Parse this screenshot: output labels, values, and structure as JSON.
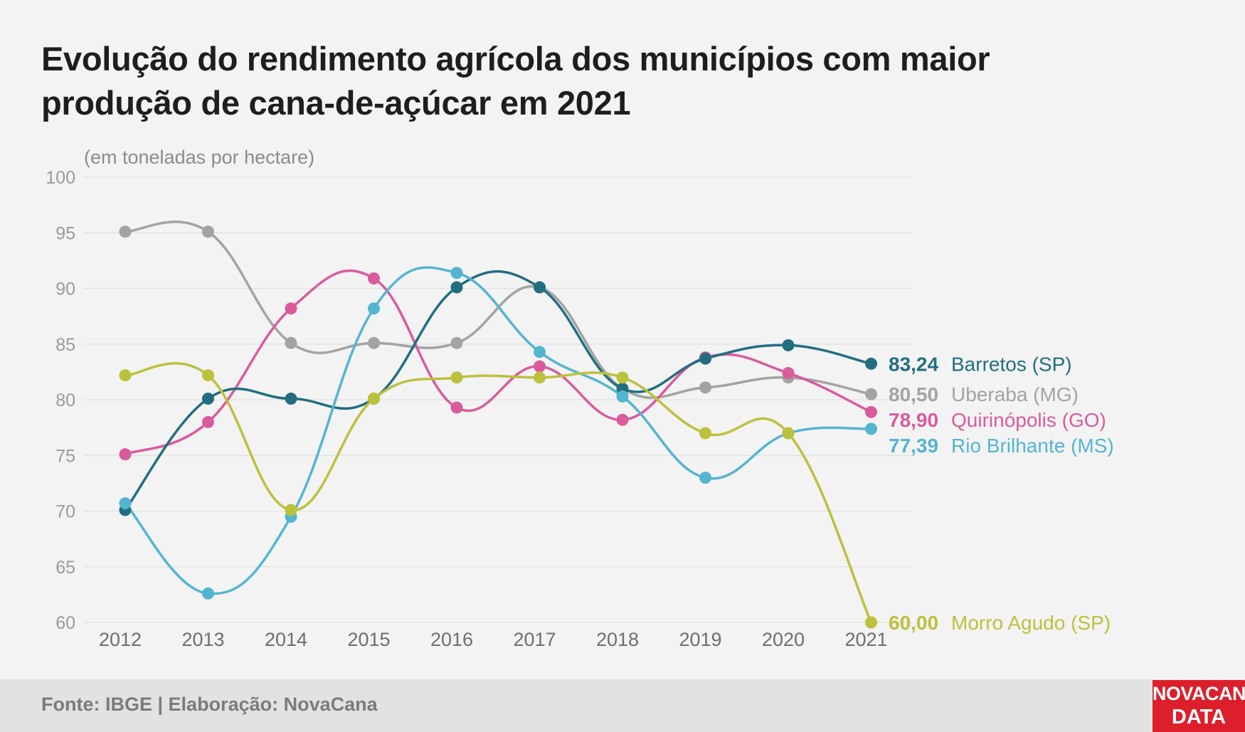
{
  "title": "Evolução do rendimento agrícola dos municípios com maior produção de cana-de-açúcar em 2021",
  "footer": {
    "source": "Fonte: IBGE | Elaboração: NovaCana"
  },
  "logo": {
    "line1": "NOVACANA",
    "line2": "DATA"
  },
  "chart_data": {
    "type": "line",
    "unit_label": "(em toneladas por hectare)",
    "x": [
      "2012",
      "2013",
      "2014",
      "2015",
      "2016",
      "2017",
      "2018",
      "2019",
      "2020",
      "2021"
    ],
    "ylim": [
      60,
      100
    ],
    "yticks": [
      60,
      65,
      70,
      75,
      80,
      85,
      90,
      95,
      100
    ],
    "grid": true,
    "smooth": true,
    "legend": "end-labels",
    "series": [
      {
        "name": "Uberaba (MG)",
        "end_label": "80,50",
        "color": "#a3a3a3",
        "values": [
          95.1,
          95.1,
          85.1,
          85.1,
          85.1,
          90.1,
          81.0,
          81.1,
          82.0,
          80.5
        ]
      },
      {
        "name": "Quirinópolis (GO)",
        "end_label": "78,90",
        "color": "#d95b9c",
        "values": [
          75.1,
          78.0,
          88.2,
          90.9,
          79.3,
          83.0,
          78.2,
          83.8,
          82.4,
          78.9
        ]
      },
      {
        "name": "Barretos (SP)",
        "end_label": "83,24",
        "color": "#226e80",
        "values": [
          70.1,
          80.1,
          80.1,
          80.1,
          90.1,
          90.1,
          81.0,
          83.7,
          84.9,
          83.24
        ]
      },
      {
        "name": "Rio Brilhante (MS)",
        "end_label": "77,39",
        "color": "#54b5d0",
        "values": [
          70.7,
          62.6,
          69.5,
          88.2,
          91.4,
          84.3,
          80.3,
          73.0,
          77.0,
          77.39
        ]
      },
      {
        "name": "Morro Agudo (SP)",
        "end_label": "60,00",
        "color": "#bcc13c",
        "values": [
          82.2,
          82.2,
          70.1,
          80.1,
          82.0,
          82.0,
          82.0,
          77.0,
          77.0,
          60.0
        ]
      }
    ]
  }
}
